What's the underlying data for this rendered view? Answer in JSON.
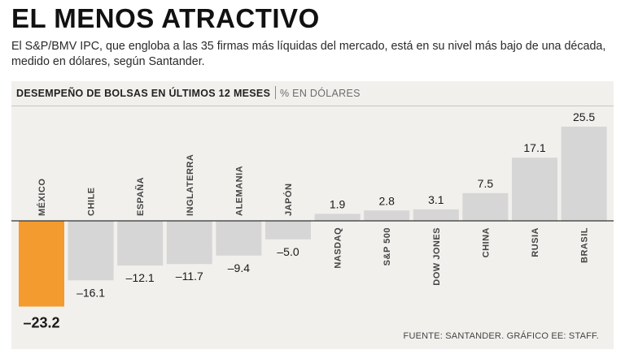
{
  "title": "EL MENOS ATRACTIVO",
  "subtitle": "El S&P/BMV IPC, que engloba a las 35 firmas más líquidas del mercado, está en su nivel más bajo de una década, medido en dólares, según Santander.",
  "chart_header": {
    "title": "DESEMPEÑO DE BOLSAS EN ÚLTIMOS 12 MESES",
    "unit": "% EN DÓLARES"
  },
  "source": "FUENTE: SANTANDER. GRÁFICO EE: STAFF.",
  "colors": {
    "highlight": "#f39b2e",
    "bar": "#d6d6d6",
    "axis": "#333333"
  },
  "chart_data": {
    "type": "bar",
    "title": "DESEMPEÑO DE BOLSAS EN ÚLTIMOS 12 MESES",
    "ylabel": "% EN DÓLARES",
    "categories": [
      "MÉXICO",
      "CHILE",
      "ESPAÑA",
      "INGLATERRA",
      "ALEMANIA",
      "JAPÓN",
      "NASDAQ",
      "S&P 500",
      "DOW JONES",
      "CHINA",
      "RUSIA",
      "BRASIL"
    ],
    "values": [
      -23.2,
      -16.1,
      -12.1,
      -11.7,
      -9.4,
      -5.0,
      1.9,
      2.8,
      3.1,
      7.5,
      17.1,
      25.5
    ],
    "value_labels": [
      "–23.2",
      "–16.1",
      "–12.1",
      "–11.7",
      "–9.4",
      "–5.0",
      "1.9",
      "2.8",
      "3.1",
      "7.5",
      "17.1",
      "25.5"
    ],
    "highlight": "MÉXICO",
    "ylim": [
      -23.2,
      25.5
    ]
  }
}
